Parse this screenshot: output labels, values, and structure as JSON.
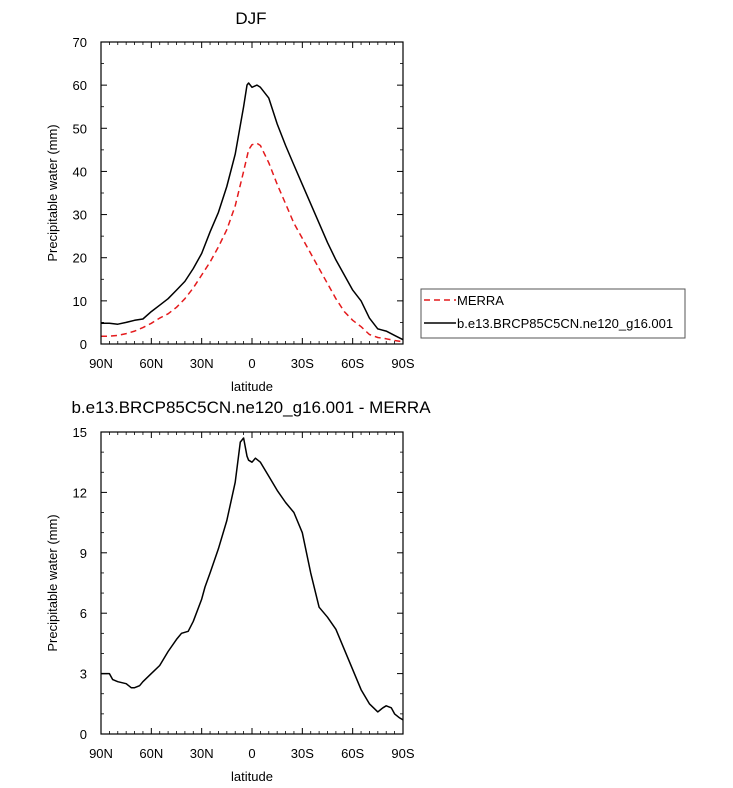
{
  "chart_data": [
    {
      "type": "line",
      "title": "DJF",
      "xlabel": "latitude",
      "ylabel": "Precipitable water (mm)",
      "xlim": [
        90,
        -90
      ],
      "ylim": [
        0,
        70
      ],
      "xticks": [
        90,
        60,
        30,
        0,
        -30,
        -60,
        -90
      ],
      "xtick_labels": [
        "90N",
        "60N",
        "30N",
        "0",
        "30S",
        "60S",
        "90S"
      ],
      "yticks": [
        0,
        10,
        20,
        30,
        40,
        50,
        60,
        70
      ],
      "ytick_labels": [
        "0",
        "10",
        "20",
        "30",
        "40",
        "50",
        "60",
        "70"
      ],
      "legend_position": "right",
      "series": [
        {
          "name": "MERRA",
          "color": "#e41a1c",
          "dash": "dashed",
          "x": [
            90,
            85,
            80,
            75,
            70,
            65,
            60,
            55,
            50,
            45,
            40,
            35,
            30,
            25,
            20,
            15,
            10,
            5,
            2,
            0,
            -3,
            -5,
            -10,
            -15,
            -20,
            -25,
            -30,
            -35,
            -40,
            -45,
            -50,
            -55,
            -60,
            -65,
            -70,
            -75,
            -80,
            -85,
            -90
          ],
          "y": [
            1.8,
            1.8,
            2.0,
            2.4,
            3.0,
            3.8,
            4.8,
            6.0,
            7.0,
            8.5,
            10.5,
            13.0,
            16.0,
            19.0,
            22.5,
            26.5,
            32.0,
            40.0,
            45.0,
            46.2,
            46.5,
            46.0,
            42.0,
            37.0,
            32.5,
            28.0,
            24.5,
            21.0,
            17.5,
            14.0,
            10.5,
            7.5,
            5.5,
            4.0,
            2.2,
            1.5,
            1.2,
            0.8,
            0.5
          ]
        },
        {
          "name": "b.e13.BRCP85C5CN.ne120_g16.001",
          "color": "#000000",
          "dash": "solid",
          "x": [
            90,
            85,
            80,
            75,
            70,
            65,
            60,
            55,
            50,
            45,
            40,
            35,
            30,
            25,
            20,
            15,
            10,
            5,
            3,
            2,
            0,
            -3,
            -5,
            -10,
            -15,
            -20,
            -25,
            -30,
            -35,
            -40,
            -45,
            -50,
            -55,
            -60,
            -65,
            -70,
            -75,
            -80,
            -85,
            -90
          ],
          "y": [
            4.8,
            4.8,
            4.6,
            5.0,
            5.5,
            5.8,
            7.5,
            9.0,
            10.5,
            12.5,
            14.5,
            17.5,
            21.0,
            26.0,
            30.5,
            36.5,
            44.0,
            55.0,
            60.0,
            60.5,
            59.5,
            60.0,
            59.5,
            57.0,
            51.0,
            46.0,
            41.5,
            37.0,
            32.5,
            28.0,
            23.5,
            19.5,
            16.0,
            12.5,
            10.0,
            6.0,
            3.5,
            3.0,
            2.0,
            1.0
          ]
        }
      ]
    },
    {
      "type": "line",
      "title": "b.e13.BRCP85C5CN.ne120_g16.001 - MERRA",
      "xlabel": "latitude",
      "ylabel": "Precipitable water (mm)",
      "xlim": [
        90,
        -90
      ],
      "ylim": [
        0,
        15
      ],
      "xticks": [
        90,
        60,
        30,
        0,
        -30,
        -60,
        -90
      ],
      "xtick_labels": [
        "90N",
        "60N",
        "30N",
        "0",
        "30S",
        "60S",
        "90S"
      ],
      "yticks": [
        0,
        3,
        6,
        9,
        12,
        15
      ],
      "ytick_labels": [
        "0",
        "3",
        "6",
        "9",
        "12",
        "15"
      ],
      "series": [
        {
          "color": "#000000",
          "dash": "solid",
          "x": [
            90,
            85,
            83,
            80,
            75,
            72,
            70,
            67,
            65,
            60,
            55,
            50,
            45,
            42,
            38,
            35,
            30,
            28,
            25,
            20,
            15,
            10,
            7,
            5,
            3,
            2,
            0,
            -2,
            -5,
            -10,
            -15,
            -20,
            -25,
            -30,
            -35,
            -40,
            -45,
            -50,
            -55,
            -60,
            -65,
            -70,
            -75,
            -78,
            -80,
            -83,
            -85,
            -88,
            -90
          ],
          "y": [
            3.0,
            3.0,
            2.7,
            2.6,
            2.5,
            2.3,
            2.3,
            2.4,
            2.6,
            3.0,
            3.4,
            4.1,
            4.7,
            5.0,
            5.1,
            5.6,
            6.7,
            7.3,
            8.0,
            9.2,
            10.6,
            12.5,
            14.5,
            14.7,
            13.8,
            13.6,
            13.5,
            13.7,
            13.5,
            12.8,
            12.1,
            11.5,
            11.0,
            10.0,
            8.0,
            6.3,
            5.8,
            5.2,
            4.2,
            3.2,
            2.2,
            1.5,
            1.1,
            1.3,
            1.4,
            1.3,
            1.0,
            0.8,
            0.7
          ]
        }
      ]
    }
  ]
}
